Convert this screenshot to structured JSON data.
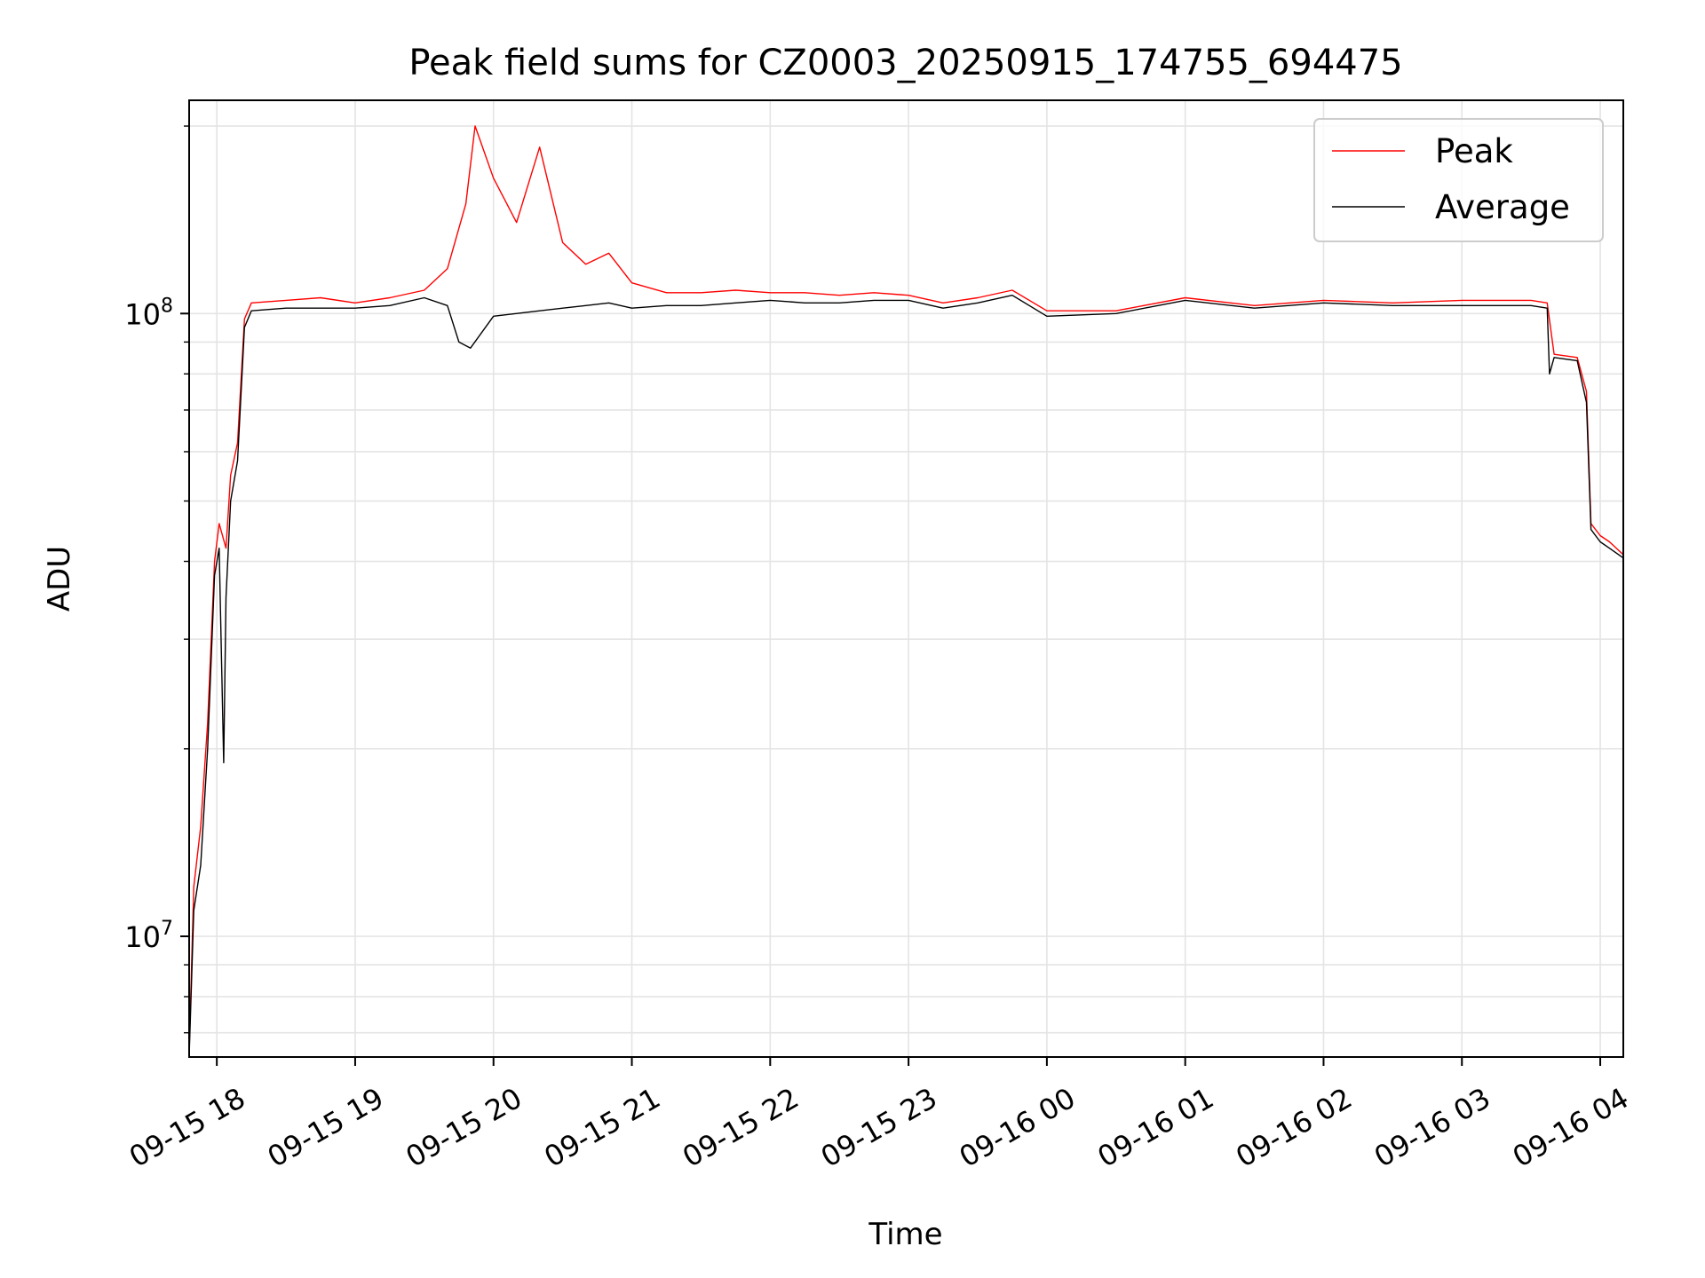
{
  "chart_data": {
    "type": "line",
    "title": "Peak field sums for CZ0003_20250915_174755_694475",
    "xlabel": "Time",
    "ylabel": "ADU",
    "yscale": "log",
    "grid": true,
    "legend_position": "top-right",
    "xlim": [
      "2025-09-15 17:48",
      "2025-09-16 04:10"
    ],
    "ylim": [
      6400000,
      220000000
    ],
    "x_ticks": [
      "09-15 18",
      "09-15 19",
      "09-15 20",
      "09-15 21",
      "09-15 22",
      "09-15 23",
      "09-16 00",
      "09-16 01",
      "09-16 02",
      "09-16 03",
      "09-16 04"
    ],
    "x_tick_times": [
      "2025-09-15 18:00",
      "2025-09-15 19:00",
      "2025-09-15 20:00",
      "2025-09-15 21:00",
      "2025-09-15 22:00",
      "2025-09-15 23:00",
      "2025-09-16 00:00",
      "2025-09-16 01:00",
      "2025-09-16 02:00",
      "2025-09-16 03:00",
      "2025-09-16 04:00"
    ],
    "y_ticks": [
      {
        "value": 100000000,
        "base": "10",
        "exp": "8"
      },
      {
        "value": 10000000,
        "base": "10",
        "exp": "7"
      }
    ],
    "series": [
      {
        "name": "Peak",
        "color": "#ff0000",
        "points": [
          [
            "2025-09-15 17:48",
            6500000
          ],
          [
            "2025-09-15 17:50",
            12000000
          ],
          [
            "2025-09-15 17:53",
            15000000
          ],
          [
            "2025-09-15 17:56",
            22000000
          ],
          [
            "2025-09-15 17:59",
            40000000
          ],
          [
            "2025-09-15 18:01",
            46000000
          ],
          [
            "2025-09-15 18:04",
            42000000
          ],
          [
            "2025-09-15 18:06",
            55000000
          ],
          [
            "2025-09-15 18:09",
            62000000
          ],
          [
            "2025-09-15 18:12",
            98000000
          ],
          [
            "2025-09-15 18:15",
            104000000
          ],
          [
            "2025-09-15 18:30",
            105000000
          ],
          [
            "2025-09-15 18:45",
            106000000
          ],
          [
            "2025-09-15 19:00",
            104000000
          ],
          [
            "2025-09-15 19:15",
            106000000
          ],
          [
            "2025-09-15 19:30",
            109000000
          ],
          [
            "2025-09-15 19:40",
            118000000
          ],
          [
            "2025-09-15 19:48",
            150000000
          ],
          [
            "2025-09-15 19:52",
            200000000
          ],
          [
            "2025-09-15 20:00",
            165000000
          ],
          [
            "2025-09-15 20:10",
            140000000
          ],
          [
            "2025-09-15 20:20",
            185000000
          ],
          [
            "2025-09-15 20:30",
            130000000
          ],
          [
            "2025-09-15 20:40",
            120000000
          ],
          [
            "2025-09-15 20:50",
            125000000
          ],
          [
            "2025-09-15 21:00",
            112000000
          ],
          [
            "2025-09-15 21:15",
            108000000
          ],
          [
            "2025-09-15 21:30",
            108000000
          ],
          [
            "2025-09-15 21:45",
            109000000
          ],
          [
            "2025-09-15 22:00",
            108000000
          ],
          [
            "2025-09-15 22:15",
            108000000
          ],
          [
            "2025-09-15 22:30",
            107000000
          ],
          [
            "2025-09-15 22:45",
            108000000
          ],
          [
            "2025-09-15 23:00",
            107000000
          ],
          [
            "2025-09-15 23:15",
            104000000
          ],
          [
            "2025-09-15 23:30",
            106000000
          ],
          [
            "2025-09-15 23:45",
            109000000
          ],
          [
            "2025-09-16 00:00",
            101000000
          ],
          [
            "2025-09-16 00:30",
            101000000
          ],
          [
            "2025-09-16 01:00",
            106000000
          ],
          [
            "2025-09-16 01:30",
            103000000
          ],
          [
            "2025-09-16 02:00",
            105000000
          ],
          [
            "2025-09-16 02:30",
            104000000
          ],
          [
            "2025-09-16 03:00",
            105000000
          ],
          [
            "2025-09-16 03:30",
            105000000
          ],
          [
            "2025-09-16 03:37",
            104000000
          ],
          [
            "2025-09-16 03:40",
            86000000
          ],
          [
            "2025-09-16 03:50",
            85000000
          ],
          [
            "2025-09-16 03:54",
            75000000
          ],
          [
            "2025-09-16 03:56",
            46000000
          ],
          [
            "2025-09-16 04:00",
            44000000
          ],
          [
            "2025-09-16 04:04",
            43000000
          ],
          [
            "2025-09-16 04:10",
            41000000
          ]
        ]
      },
      {
        "name": "Average",
        "color": "#000000",
        "points": [
          [
            "2025-09-15 17:48",
            6400000
          ],
          [
            "2025-09-15 17:50",
            11000000
          ],
          [
            "2025-09-15 17:53",
            13000000
          ],
          [
            "2025-09-15 17:56",
            20000000
          ],
          [
            "2025-09-15 17:59",
            38000000
          ],
          [
            "2025-09-15 18:01",
            42000000
          ],
          [
            "2025-09-15 18:03",
            19000000
          ],
          [
            "2025-09-15 18:04",
            35000000
          ],
          [
            "2025-09-15 18:06",
            50000000
          ],
          [
            "2025-09-15 18:09",
            58000000
          ],
          [
            "2025-09-15 18:12",
            95000000
          ],
          [
            "2025-09-15 18:15",
            101000000
          ],
          [
            "2025-09-15 18:30",
            102000000
          ],
          [
            "2025-09-15 18:45",
            102000000
          ],
          [
            "2025-09-15 19:00",
            102000000
          ],
          [
            "2025-09-15 19:15",
            103000000
          ],
          [
            "2025-09-15 19:30",
            106000000
          ],
          [
            "2025-09-15 19:40",
            103000000
          ],
          [
            "2025-09-15 19:45",
            90000000
          ],
          [
            "2025-09-15 19:50",
            88000000
          ],
          [
            "2025-09-15 20:00",
            99000000
          ],
          [
            "2025-09-15 20:20",
            101000000
          ],
          [
            "2025-09-15 20:40",
            103000000
          ],
          [
            "2025-09-15 20:50",
            104000000
          ],
          [
            "2025-09-15 21:00",
            102000000
          ],
          [
            "2025-09-15 21:15",
            103000000
          ],
          [
            "2025-09-15 21:30",
            103000000
          ],
          [
            "2025-09-15 21:45",
            104000000
          ],
          [
            "2025-09-15 22:00",
            105000000
          ],
          [
            "2025-09-15 22:15",
            104000000
          ],
          [
            "2025-09-15 22:30",
            104000000
          ],
          [
            "2025-09-15 22:45",
            105000000
          ],
          [
            "2025-09-15 23:00",
            105000000
          ],
          [
            "2025-09-15 23:15",
            102000000
          ],
          [
            "2025-09-15 23:30",
            104000000
          ],
          [
            "2025-09-15 23:45",
            107000000
          ],
          [
            "2025-09-16 00:00",
            99000000
          ],
          [
            "2025-09-16 00:30",
            100000000
          ],
          [
            "2025-09-16 01:00",
            105000000
          ],
          [
            "2025-09-16 01:30",
            102000000
          ],
          [
            "2025-09-16 02:00",
            104000000
          ],
          [
            "2025-09-16 02:30",
            103000000
          ],
          [
            "2025-09-16 03:00",
            103000000
          ],
          [
            "2025-09-16 03:30",
            103000000
          ],
          [
            "2025-09-16 03:37",
            102000000
          ],
          [
            "2025-09-16 03:38",
            80000000
          ],
          [
            "2025-09-16 03:40",
            85000000
          ],
          [
            "2025-09-16 03:50",
            84000000
          ],
          [
            "2025-09-16 03:54",
            72000000
          ],
          [
            "2025-09-16 03:56",
            45000000
          ],
          [
            "2025-09-16 04:00",
            43000000
          ],
          [
            "2025-09-16 04:04",
            42000000
          ],
          [
            "2025-09-16 04:10",
            40500000
          ]
        ]
      }
    ]
  }
}
